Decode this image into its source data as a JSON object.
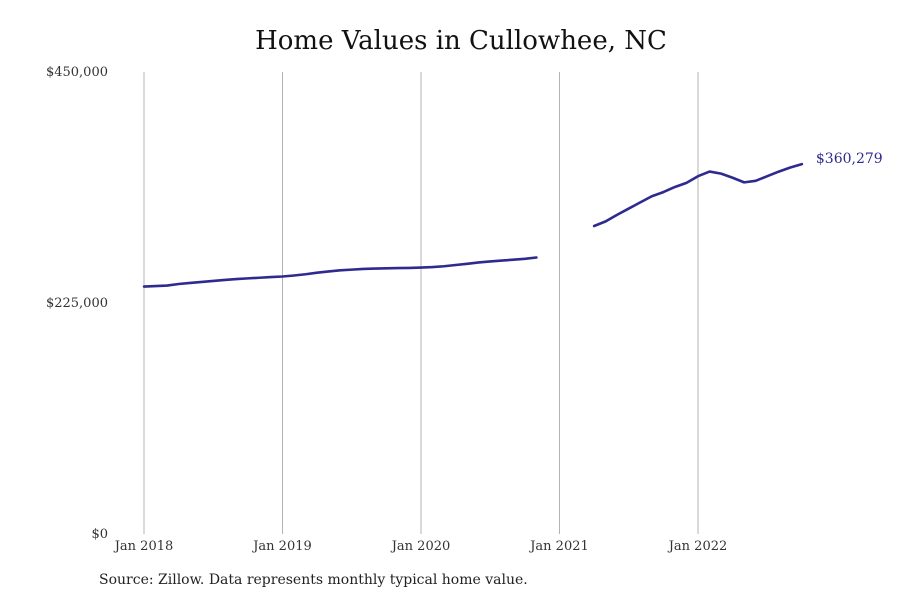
{
  "chart_data": {
    "type": "line",
    "title": "Home Values in Cullowhee, NC",
    "xlabel": "",
    "ylabel": "",
    "ylim": [
      0,
      450000
    ],
    "y_ticks": [
      {
        "value": 0,
        "label": "$0"
      },
      {
        "value": 225000,
        "label": "$225,000"
      },
      {
        "value": 450000,
        "label": "$450,000"
      }
    ],
    "x_ticks": [
      {
        "value": "2018-01",
        "label": "Jan 2018"
      },
      {
        "value": "2019-01",
        "label": "Jan 2019"
      },
      {
        "value": "2020-01",
        "label": "Jan 2020"
      },
      {
        "value": "2021-01",
        "label": "Jan 2021"
      },
      {
        "value": "2022-01",
        "label": "Jan 2022"
      }
    ],
    "x_range": [
      "2018-01",
      "2023-01"
    ],
    "grid": "vertical",
    "series": [
      {
        "color": "#2e2a8f",
        "segments": [
          [
            {
              "x": "2018-01",
              "y": 241000
            },
            {
              "x": "2018-02",
              "y": 241500
            },
            {
              "x": "2018-03",
              "y": 242000
            },
            {
              "x": "2018-04",
              "y": 243500
            },
            {
              "x": "2018-05",
              "y": 244500
            },
            {
              "x": "2018-06",
              "y": 245500
            },
            {
              "x": "2018-07",
              "y": 246500
            },
            {
              "x": "2018-08",
              "y": 247500
            },
            {
              "x": "2018-09",
              "y": 248300
            },
            {
              "x": "2018-10",
              "y": 249000
            },
            {
              "x": "2018-11",
              "y": 249600
            },
            {
              "x": "2018-12",
              "y": 250300
            },
            {
              "x": "2019-01",
              "y": 250800
            },
            {
              "x": "2019-02",
              "y": 251800
            },
            {
              "x": "2019-03",
              "y": 253000
            },
            {
              "x": "2019-04",
              "y": 254500
            },
            {
              "x": "2019-05",
              "y": 255700
            },
            {
              "x": "2019-06",
              "y": 256800
            },
            {
              "x": "2019-07",
              "y": 257500
            },
            {
              "x": "2019-08",
              "y": 258200
            },
            {
              "x": "2019-09",
              "y": 258500
            },
            {
              "x": "2019-10",
              "y": 258800
            },
            {
              "x": "2019-11",
              "y": 259000
            },
            {
              "x": "2019-12",
              "y": 259200
            },
            {
              "x": "2020-01",
              "y": 259500
            },
            {
              "x": "2020-02",
              "y": 260000
            },
            {
              "x": "2020-03",
              "y": 260800
            },
            {
              "x": "2020-04",
              "y": 262000
            },
            {
              "x": "2020-05",
              "y": 263200
            },
            {
              "x": "2020-06",
              "y": 264500
            },
            {
              "x": "2020-07",
              "y": 265500
            },
            {
              "x": "2020-08",
              "y": 266300
            },
            {
              "x": "2020-09",
              "y": 267200
            },
            {
              "x": "2020-10",
              "y": 268000
            },
            {
              "x": "2020-11",
              "y": 269300
            }
          ],
          [
            {
              "x": "2021-04",
              "y": 300000
            },
            {
              "x": "2021-05",
              "y": 304500
            },
            {
              "x": "2021-06",
              "y": 311000
            },
            {
              "x": "2021-07",
              "y": 317000
            },
            {
              "x": "2021-08",
              "y": 323000
            },
            {
              "x": "2021-09",
              "y": 329000
            },
            {
              "x": "2021-10",
              "y": 333000
            },
            {
              "x": "2021-11",
              "y": 338000
            },
            {
              "x": "2021-12",
              "y": 342000
            },
            {
              "x": "2022-01",
              "y": 348500
            },
            {
              "x": "2022-02",
              "y": 353000
            },
            {
              "x": "2022-03",
              "y": 351000
            },
            {
              "x": "2022-04",
              "y": 347000
            },
            {
              "x": "2022-05",
              "y": 342500
            },
            {
              "x": "2022-06",
              "y": 344000
            },
            {
              "x": "2022-07",
              "y": 348500
            },
            {
              "x": "2022-08",
              "y": 353000
            },
            {
              "x": "2022-09",
              "y": 357000
            },
            {
              "x": "2022-10",
              "y": 360279
            }
          ]
        ]
      }
    ],
    "end_label": "$360,279"
  },
  "source_note": "Source: Zillow. Data represents monthly typical home value."
}
